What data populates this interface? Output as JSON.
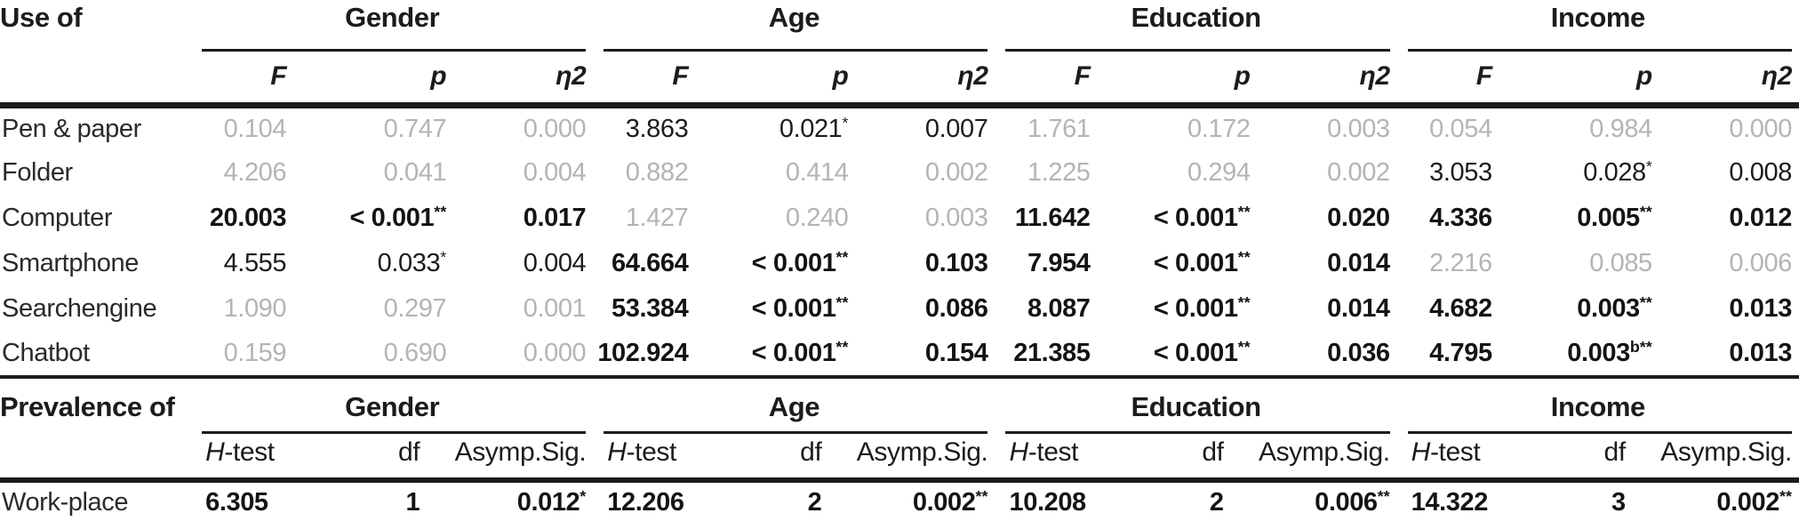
{
  "colors": {
    "ink": "#1c1c1c",
    "dim_value": "#b4b4b4",
    "background": "#ffffff"
  },
  "anova_table": {
    "corner": "Use of",
    "groups": [
      "Gender",
      "Age",
      "Education",
      "Income"
    ],
    "subcolumns": [
      "F",
      "p",
      "η2"
    ],
    "rows": [
      {
        "label": "Pen & paper",
        "cells": [
          {
            "v": "0.104",
            "s": "",
            "w": "dim"
          },
          {
            "v": "0.747",
            "s": "",
            "w": "dim"
          },
          {
            "v": "0.000",
            "s": "",
            "w": "dim"
          },
          {
            "v": "3.863",
            "s": "",
            "w": "plain"
          },
          {
            "v": "0.021",
            "s": "*",
            "w": "plain"
          },
          {
            "v": "0.007",
            "s": "",
            "w": "plain"
          },
          {
            "v": "1.761",
            "s": "",
            "w": "dim"
          },
          {
            "v": "0.172",
            "s": "",
            "w": "dim"
          },
          {
            "v": "0.003",
            "s": "",
            "w": "dim"
          },
          {
            "v": "0.054",
            "s": "",
            "w": "dim"
          },
          {
            "v": "0.984",
            "s": "",
            "w": "dim"
          },
          {
            "v": "0.000",
            "s": "",
            "w": "dim"
          }
        ]
      },
      {
        "label": "Folder",
        "cells": [
          {
            "v": "4.206",
            "s": "",
            "w": "dim"
          },
          {
            "v": "0.041",
            "s": "",
            "w": "dim"
          },
          {
            "v": "0.004",
            "s": "",
            "w": "dim"
          },
          {
            "v": "0.882",
            "s": "",
            "w": "dim"
          },
          {
            "v": "0.414",
            "s": "",
            "w": "dim"
          },
          {
            "v": "0.002",
            "s": "",
            "w": "dim"
          },
          {
            "v": "1.225",
            "s": "",
            "w": "dim"
          },
          {
            "v": "0.294",
            "s": "",
            "w": "dim"
          },
          {
            "v": "0.002",
            "s": "",
            "w": "dim"
          },
          {
            "v": "3.053",
            "s": "",
            "w": "plain"
          },
          {
            "v": "0.028",
            "s": "*",
            "w": "plain"
          },
          {
            "v": "0.008",
            "s": "",
            "w": "plain"
          }
        ]
      },
      {
        "label": "Computer",
        "cells": [
          {
            "v": "20.003",
            "s": "",
            "w": "bold"
          },
          {
            "v": "< 0.001",
            "s": "**",
            "w": "bold"
          },
          {
            "v": "0.017",
            "s": "",
            "w": "bold"
          },
          {
            "v": "1.427",
            "s": "",
            "w": "dim"
          },
          {
            "v": "0.240",
            "s": "",
            "w": "dim"
          },
          {
            "v": "0.003",
            "s": "",
            "w": "dim"
          },
          {
            "v": "11.642",
            "s": "",
            "w": "bold"
          },
          {
            "v": "< 0.001",
            "s": "**",
            "w": "bold"
          },
          {
            "v": "0.020",
            "s": "",
            "w": "bold"
          },
          {
            "v": "4.336",
            "s": "",
            "w": "bold"
          },
          {
            "v": "0.005",
            "s": "**",
            "w": "bold"
          },
          {
            "v": "0.012",
            "s": "",
            "w": "bold"
          }
        ]
      },
      {
        "label": "Smartphone",
        "cells": [
          {
            "v": "4.555",
            "s": "",
            "w": "plain"
          },
          {
            "v": "0.033",
            "s": "*",
            "w": "plain"
          },
          {
            "v": "0.004",
            "s": "",
            "w": "plain"
          },
          {
            "v": "64.664",
            "s": "",
            "w": "bold"
          },
          {
            "v": "< 0.001",
            "s": "**",
            "w": "bold"
          },
          {
            "v": "0.103",
            "s": "",
            "w": "bold"
          },
          {
            "v": "7.954",
            "s": "",
            "w": "bold"
          },
          {
            "v": "< 0.001",
            "s": "**",
            "w": "bold"
          },
          {
            "v": "0.014",
            "s": "",
            "w": "bold"
          },
          {
            "v": "2.216",
            "s": "",
            "w": "dim"
          },
          {
            "v": "0.085",
            "s": "",
            "w": "dim"
          },
          {
            "v": "0.006",
            "s": "",
            "w": "dim"
          }
        ]
      },
      {
        "label": "Searchengine",
        "cells": [
          {
            "v": "1.090",
            "s": "",
            "w": "dim"
          },
          {
            "v": "0.297",
            "s": "",
            "w": "dim"
          },
          {
            "v": "0.001",
            "s": "",
            "w": "dim"
          },
          {
            "v": "53.384",
            "s": "",
            "w": "bold"
          },
          {
            "v": "< 0.001",
            "s": "**",
            "w": "bold"
          },
          {
            "v": "0.086",
            "s": "",
            "w": "bold"
          },
          {
            "v": "8.087",
            "s": "",
            "w": "bold"
          },
          {
            "v": "< 0.001",
            "s": "**",
            "w": "bold"
          },
          {
            "v": "0.014",
            "s": "",
            "w": "bold"
          },
          {
            "v": "4.682",
            "s": "",
            "w": "bold"
          },
          {
            "v": "0.003",
            "s": "**",
            "w": "bold"
          },
          {
            "v": "0.013",
            "s": "",
            "w": "bold"
          }
        ]
      },
      {
        "label": "Chatbot",
        "cells": [
          {
            "v": "0.159",
            "s": "",
            "w": "dim"
          },
          {
            "v": "0.690",
            "s": "",
            "w": "dim"
          },
          {
            "v": "0.000",
            "s": "",
            "w": "dim"
          },
          {
            "v": "102.924",
            "s": "",
            "w": "bold"
          },
          {
            "v": "< 0.001",
            "s": "**",
            "w": "bold"
          },
          {
            "v": "0.154",
            "s": "",
            "w": "bold"
          },
          {
            "v": "21.385",
            "s": "",
            "w": "bold"
          },
          {
            "v": "< 0.001",
            "s": "**",
            "w": "bold"
          },
          {
            "v": "0.036",
            "s": "",
            "w": "bold"
          },
          {
            "v": "4.795",
            "s": "",
            "w": "bold"
          },
          {
            "v": "0.003",
            "s": "b**",
            "w": "bold"
          },
          {
            "v": "0.013",
            "s": "",
            "w": "bold"
          }
        ]
      }
    ]
  },
  "kruskal_table": {
    "corner": "Prevalence of",
    "groups": [
      "Gender",
      "Age",
      "Education",
      "Income"
    ],
    "subcolumns": [
      {
        "italic": "H",
        "text": "-test"
      },
      {
        "italic": "",
        "text": "df"
      },
      {
        "italic": "",
        "text": "Asymp.Sig."
      }
    ],
    "rows": [
      {
        "label": "Work-place",
        "cells": [
          {
            "v": "6.305",
            "s": "",
            "w": "bold"
          },
          {
            "v": "1",
            "s": "",
            "w": "bold"
          },
          {
            "v": "0.012",
            "s": "*",
            "w": "bold"
          },
          {
            "v": "12.206",
            "s": "",
            "w": "bold"
          },
          {
            "v": "2",
            "s": "",
            "w": "bold"
          },
          {
            "v": "0.002",
            "s": "**",
            "w": "bold"
          },
          {
            "v": "10.208",
            "s": "",
            "w": "bold"
          },
          {
            "v": "2",
            "s": "",
            "w": "bold"
          },
          {
            "v": "0.006",
            "s": "**",
            "w": "bold"
          },
          {
            "v": "14.322",
            "s": "",
            "w": "bold"
          },
          {
            "v": "3",
            "s": "",
            "w": "bold"
          },
          {
            "v": "0.002",
            "s": "**",
            "w": "bold"
          }
        ]
      }
    ]
  }
}
